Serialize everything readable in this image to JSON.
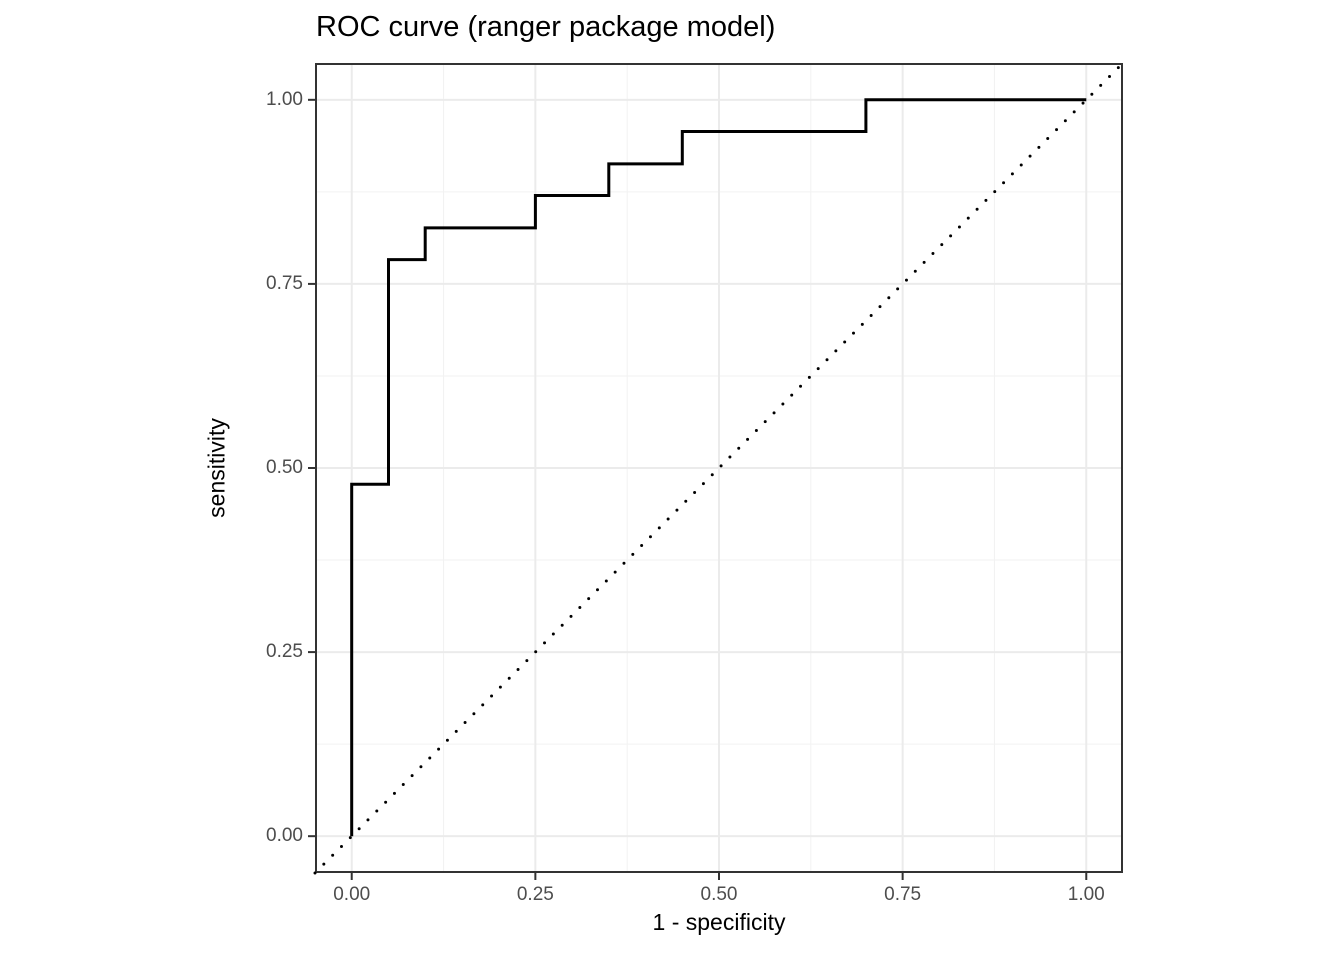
{
  "title": "ROC curve (ranger package model)",
  "axes": {
    "x": {
      "label": "1 - specificity",
      "tick_labels": [
        "0.00",
        "0.25",
        "0.50",
        "0.75",
        "1.00"
      ],
      "tick_values": [
        0,
        0.25,
        0.5,
        0.75,
        1
      ]
    },
    "y": {
      "label": "sensitivity",
      "tick_labels": [
        "0.00",
        "0.25",
        "0.50",
        "0.75",
        "1.00"
      ],
      "tick_values": [
        0,
        0.25,
        0.5,
        0.75,
        1
      ]
    }
  },
  "chart_data": {
    "type": "line",
    "title": "ROC curve (ranger package model)",
    "xlabel": "1 - specificity",
    "ylabel": "sensitivity",
    "xlim": [
      -0.05,
      1.05
    ],
    "ylim": [
      -0.05,
      1.05
    ],
    "grid": "on",
    "legend": "none",
    "x_major_grid": [
      0,
      0.25,
      0.5,
      0.75,
      1.0
    ],
    "x_minor_grid": [
      0.125,
      0.375,
      0.625,
      0.875
    ],
    "y_major_grid": [
      0,
      0.25,
      0.5,
      0.75,
      1.0
    ],
    "y_minor_grid": [
      0.125,
      0.375,
      0.625,
      0.875
    ],
    "series": [
      {
        "name": "roc-step-curve",
        "line_style": "solid",
        "line_width": 3,
        "color": "#000000",
        "x": [
          0,
          0,
          0.05,
          0.05,
          0.1,
          0.1,
          0.25,
          0.25,
          0.35,
          0.35,
          0.45,
          0.45,
          0.7,
          0.7,
          1.0
        ],
        "y": [
          0,
          0.478,
          0.478,
          0.783,
          0.783,
          0.826,
          0.826,
          0.87,
          0.87,
          0.913,
          0.913,
          0.957,
          0.957,
          1.0,
          1.0
        ]
      },
      {
        "name": "chance-diagonal",
        "line_style": "dotted",
        "line_width": 3,
        "color": "#000000",
        "x": [
          -0.05,
          1.05
        ],
        "y": [
          -0.05,
          1.05
        ]
      }
    ]
  },
  "colors": {
    "background": "#FFFFFF",
    "panel_background": "#FFFFFF",
    "panel_border": "#333333",
    "grid_major": "#EBEBEB",
    "grid_minor": "#F2F2F2",
    "tick_mark": "#333333",
    "tick_label": "#4D4D4D",
    "text": "#000000"
  }
}
